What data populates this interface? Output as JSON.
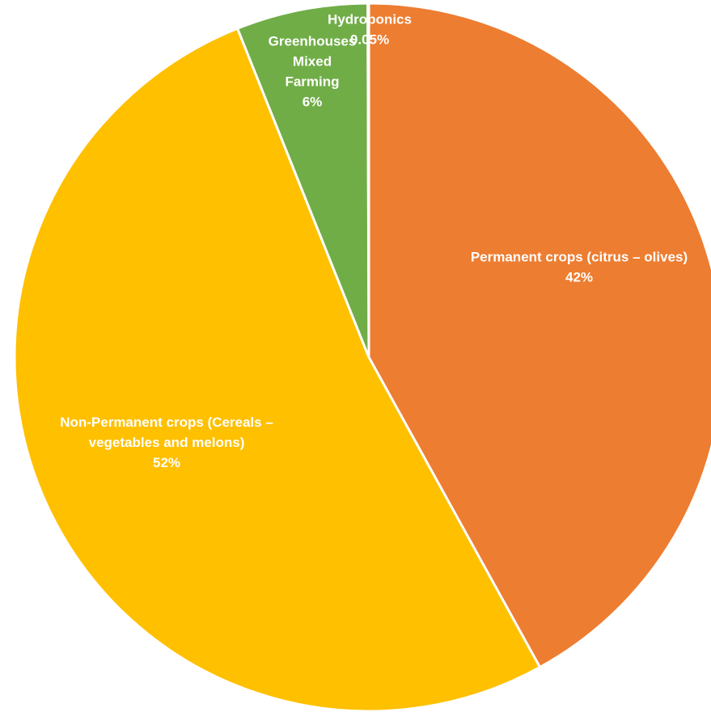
{
  "chart_data": {
    "type": "pie",
    "start_angle_deg": 0,
    "direction": "clockwise",
    "slices": [
      {
        "label_lines": [
          "Permanent crops (citrus – olives)",
          "42%"
        ],
        "value": 42,
        "color": "#ED7D31"
      },
      {
        "label_lines": [
          "Non-Permanent crops (Cereals –",
          "vegetables and melons)",
          "52%"
        ],
        "value": 52,
        "color": "#FFC000"
      },
      {
        "label_lines": [
          "Greenhouses",
          "Mixed",
          "Farming",
          "6%"
        ],
        "value": 6,
        "color": "#70AD47"
      },
      {
        "label_lines": [
          "Hydroponics",
          "0.05%"
        ],
        "value": 0.05,
        "color": "#4472C4"
      }
    ]
  }
}
